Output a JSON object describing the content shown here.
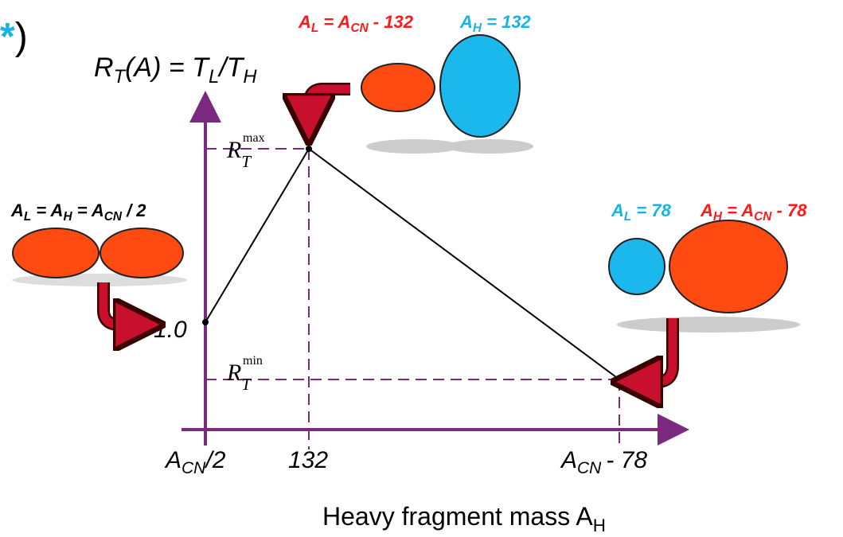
{
  "corner_mark": [
    "*",
    ")"
  ],
  "y_axis_label": [
    "R",
    "T",
    "(A) = T",
    "L",
    "/T",
    "H"
  ],
  "r_max": [
    "R",
    "T",
    "max"
  ],
  "r_min": [
    "R",
    "T",
    "min"
  ],
  "r_one": "1.0",
  "x_ticks": {
    "left": [
      "A",
      "CN",
      "/2"
    ],
    "mid": "132",
    "right": [
      "A",
      "CN",
      "- 78"
    ]
  },
  "x_axis_label": [
    "Heavy fragment mass A",
    "H"
  ],
  "top_labels": {
    "light": [
      "A",
      "L",
      " = A",
      "CN",
      " - 132"
    ],
    "heavy": [
      "A",
      "H",
      " = 132"
    ]
  },
  "left_label": [
    "A",
    "L",
    " = A",
    "H",
    " = A",
    "CN",
    "  / 2"
  ],
  "right_labels": {
    "light": [
      "A",
      "L",
      " = 78"
    ],
    "heavy": [
      "A",
      "H",
      " = A",
      "CN",
      " - 78"
    ]
  }
}
